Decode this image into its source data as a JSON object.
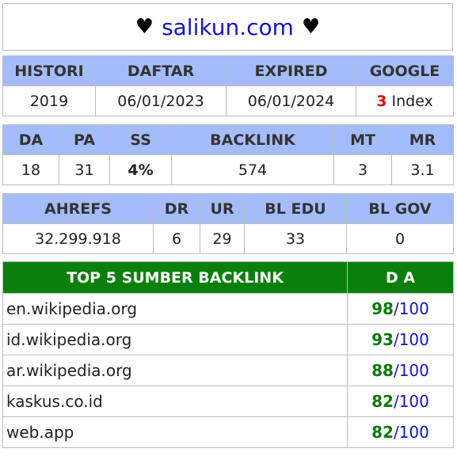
{
  "header": {
    "heart_left": "♥",
    "site": "salikun.com",
    "heart_right": "♥"
  },
  "table1": {
    "headers": [
      "HISTORI",
      "DAFTAR",
      "EXPIRED",
      "GOOGLE"
    ],
    "histori": "2019",
    "daftar": "06/01/2023",
    "expired": "06/01/2024",
    "google_count": "3",
    "google_label": "Index"
  },
  "table2": {
    "headers": [
      "DA",
      "PA",
      "SS",
      "BACKLINK",
      "MT",
      "MR"
    ],
    "values": [
      "18",
      "31",
      "4%",
      "574",
      "3",
      "3.1"
    ]
  },
  "table3": {
    "headers": [
      "AHREFS",
      "DR",
      "UR",
      "BL EDU",
      "BL GOV"
    ],
    "values": [
      "32.299.918",
      "6",
      "29",
      "33",
      "0"
    ]
  },
  "top5": {
    "header_source": "TOP 5 SUMBER BACKLINK",
    "header_da": "D A",
    "rows": [
      {
        "source": "en.wikipedia.org",
        "da": "98",
        "max": "/100"
      },
      {
        "source": "id.wikipedia.org",
        "da": "93",
        "max": "/100"
      },
      {
        "source": "ar.wikipedia.org",
        "da": "88",
        "max": "/100"
      },
      {
        "source": "kaskus.co.id",
        "da": "82",
        "max": "/100"
      },
      {
        "source": "web.app",
        "da": "82",
        "max": "/100"
      }
    ]
  },
  "colors": {
    "header_bg": "#a4bcfb",
    "green_header": "#0b7f0b",
    "link_blue": "#1515c8",
    "red": "#e60000",
    "green_text": "#0b7a0b"
  }
}
